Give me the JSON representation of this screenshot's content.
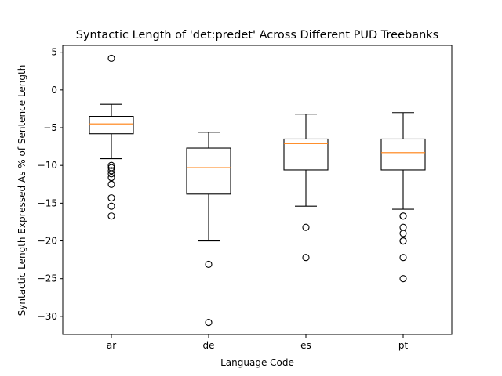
{
  "chart_data": {
    "type": "box",
    "title": "Syntactic Length of 'det:predet' Across Different PUD Treebanks",
    "xlabel": "Language Code",
    "ylabel": "Syntactic Length Expressed As % of Sentence Length",
    "categories": [
      "ar",
      "de",
      "es",
      "pt"
    ],
    "ylim": [
      -32.4,
      5.9
    ],
    "yticks": [
      5,
      0,
      -5,
      -10,
      -15,
      -20,
      -25,
      -30
    ],
    "grid": false,
    "series": [
      {
        "category": "ar",
        "whisker_high": -1.9,
        "q3": -3.5,
        "median": -4.5,
        "q1": -5.8,
        "whisker_low": -9.1,
        "outliers": [
          4.2,
          -10.0,
          -10.3,
          -10.7,
          -11.1,
          -11.6,
          -12.5,
          -14.3,
          -15.4,
          -16.7
        ]
      },
      {
        "category": "de",
        "whisker_high": -5.6,
        "q3": -7.7,
        "median": -10.3,
        "q1": -13.8,
        "whisker_low": -20.0,
        "outliers": [
          -23.1,
          -30.8
        ]
      },
      {
        "category": "es",
        "whisker_high": -3.2,
        "q3": -6.5,
        "median": -7.1,
        "q1": -10.6,
        "whisker_low": -15.4,
        "outliers": [
          -18.2,
          -22.2
        ]
      },
      {
        "category": "pt",
        "whisker_high": -3.0,
        "q3": -6.5,
        "median": -8.3,
        "q1": -10.6,
        "whisker_low": -15.8,
        "outliers": [
          -16.7,
          -16.7,
          -18.2,
          -19.0,
          -20.0,
          -20.0,
          -22.2,
          -25.0
        ]
      }
    ],
    "colors": {
      "box": "#000000",
      "median": "#ff7f0e",
      "outlier": "#000000"
    }
  }
}
